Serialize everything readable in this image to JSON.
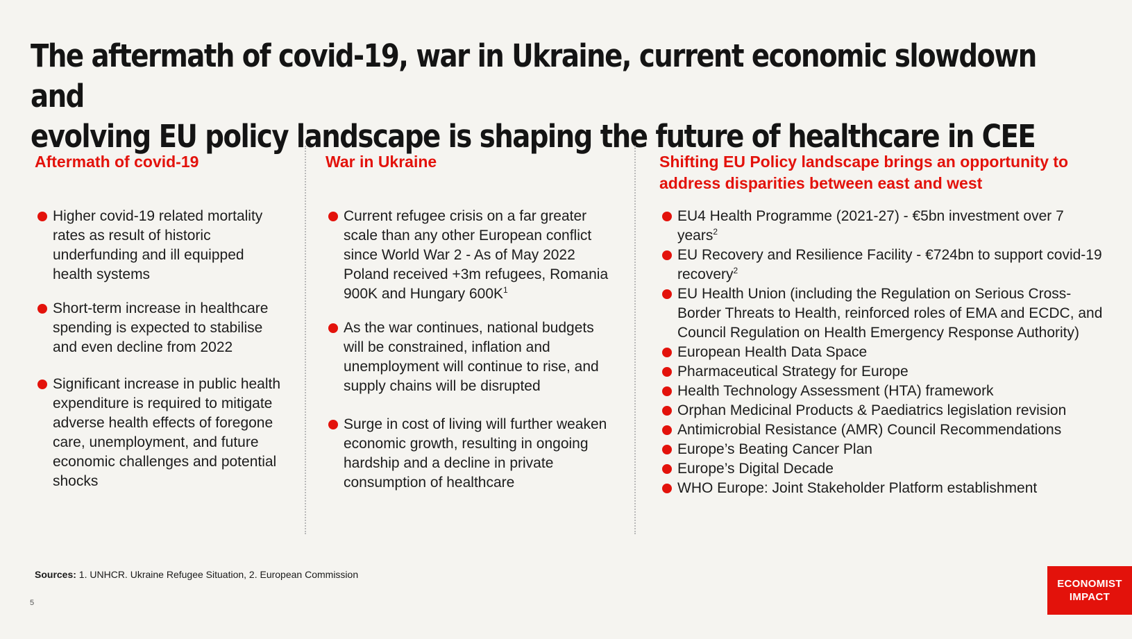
{
  "title_line1": "The aftermath of covid-19, war in Ukraine, current economic slowdown and",
  "title_line2": "evolving EU policy landscape is shaping the future of healthcare in CEE",
  "columns": [
    {
      "heading": "Aftermath of covid-19",
      "bullets": [
        {
          "text": "Higher covid-19 related mortality rates as result of historic underfunding and ill equipped health systems"
        },
        {
          "text": "Short-term increase in healthcare spending is expected to stabilise and even decline from 2022"
        },
        {
          "text": "Significant increase in public health expenditure is required to mitigate adverse health effects of foregone care, unemployment, and future economic challenges and potential shocks"
        }
      ]
    },
    {
      "heading": "War in Ukraine",
      "bullets": [
        {
          "text": "Current refugee crisis on a far greater scale than any other European conflict since World War 2 - As of May 2022 Poland received +3m refugees, Romania 900K and Hungary 600K",
          "sup": "1"
        },
        {
          "text": "As the war continues, national budgets will be constrained, inflation and unemployment will continue to rise, and supply chains will be disrupted"
        },
        {
          "text": "Surge in cost of living will further weaken economic growth, resulting in ongoing hardship and a decline in private consumption of healthcare"
        }
      ]
    },
    {
      "heading": "Shifting EU Policy landscape brings an opportunity to address disparities between east and west",
      "bullets": [
        {
          "text": "EU4 Health Programme (2021-27) - €5bn investment over 7 years",
          "sup": "2"
        },
        {
          "text": "EU Recovery and Resilience Facility - €724bn to support covid-19 recovery",
          "sup": "2"
        },
        {
          "text": "EU Health Union (including the Regulation on Serious Cross-Border Threats to Health, reinforced roles of EMA and ECDC, and Council Regulation on Health Emergency Response Authority)"
        },
        {
          "text": "European Health Data Space"
        },
        {
          "text": "Pharmaceutical Strategy for Europe"
        },
        {
          "text": "Health Technology Assessment (HTA) framework"
        },
        {
          "text": "Orphan Medicinal Products & Paediatrics legislation revision"
        },
        {
          "text": "Antimicrobial Resistance (AMR) Council Recommendations"
        },
        {
          "text": "Europe’s Beating Cancer Plan"
        },
        {
          "text": "Europe’s Digital Decade"
        },
        {
          "text": "WHO Europe: Joint Stakeholder Platform establishment"
        }
      ]
    }
  ],
  "sources_label": "Sources:",
  "sources_text": " 1. UNHCR. Ukraine Refugee Situation, 2. European Commission",
  "page_number": "5",
  "logo_line1": "ECONOMIST",
  "logo_line2": "IMPACT",
  "accent_color": "#e3120b",
  "bullet_icon": "red-dot-icon"
}
